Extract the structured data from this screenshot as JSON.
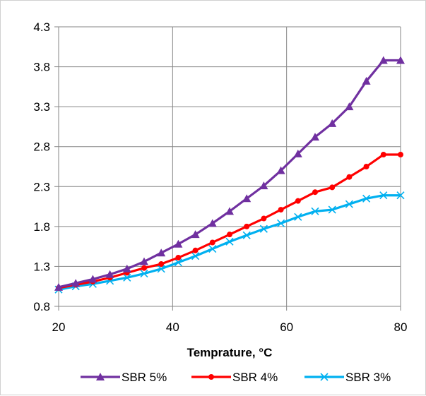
{
  "chart_data": {
    "type": "line",
    "title": "",
    "xlabel": "Temprature, °C",
    "ylabel": "",
    "xlim": [
      20,
      80
    ],
    "ylim": [
      0.8,
      4.3
    ],
    "x_ticks": [
      20,
      40,
      60,
      80
    ],
    "x_tick_labels": [
      "20",
      "40",
      "60",
      "80"
    ],
    "y_ticks": [
      0.8,
      1.3,
      1.8,
      2.3,
      2.8,
      3.3,
      3.8,
      4.3
    ],
    "y_tick_labels": [
      "0.8",
      "1.3",
      "1.8",
      "2.3",
      "2.8",
      "3.3",
      "3.8",
      "4.3"
    ],
    "grid": true,
    "legend_position": "bottom",
    "x": [
      20,
      23,
      26,
      29,
      32,
      35,
      38,
      41,
      44,
      47,
      50,
      53,
      56,
      59,
      62,
      65,
      68,
      71,
      74,
      77,
      80
    ],
    "series": [
      {
        "name": "SBR 5%",
        "color": "#7030a0",
        "marker": "triangle",
        "values": [
          1.04,
          1.09,
          1.14,
          1.2,
          1.27,
          1.36,
          1.47,
          1.58,
          1.7,
          1.84,
          1.99,
          2.15,
          2.31,
          2.5,
          2.71,
          2.92,
          3.09,
          3.3,
          3.62,
          3.88,
          3.88
        ]
      },
      {
        "name": "SBR 4%",
        "color": "#ff0000",
        "marker": "circle",
        "values": [
          1.03,
          1.07,
          1.11,
          1.16,
          1.22,
          1.28,
          1.33,
          1.41,
          1.5,
          1.6,
          1.7,
          1.8,
          1.9,
          2.01,
          2.12,
          2.23,
          2.29,
          2.42,
          2.55,
          2.7,
          2.7
        ]
      },
      {
        "name": "SBR 3%",
        "color": "#00b0f0",
        "marker": "x",
        "values": [
          1.01,
          1.05,
          1.08,
          1.12,
          1.16,
          1.21,
          1.27,
          1.35,
          1.43,
          1.52,
          1.61,
          1.69,
          1.77,
          1.84,
          1.92,
          1.99,
          2.01,
          2.08,
          2.15,
          2.19,
          2.19
        ]
      }
    ]
  }
}
